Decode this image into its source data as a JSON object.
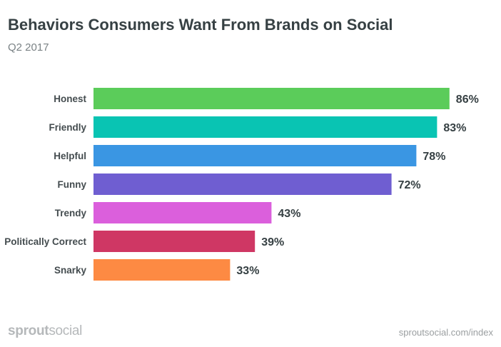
{
  "chart_data": {
    "type": "bar",
    "orientation": "horizontal",
    "title": "Behaviors Consumers Want From Brands on Social",
    "subtitle": "Q2 2017",
    "categories": [
      "Honest",
      "Friendly",
      "Helpful",
      "Funny",
      "Trendy",
      "Politically Correct",
      "Snarky"
    ],
    "values": [
      86,
      83,
      78,
      72,
      43,
      39,
      33
    ],
    "labels": [
      "86%",
      "83%",
      "78%",
      "72%",
      "43%",
      "39%",
      "33%"
    ],
    "colors": [
      "#5bcc5a",
      "#09c4b3",
      "#3a96e3",
      "#6f5ed1",
      "#db5fdc",
      "#cf3764",
      "#fd8a43"
    ],
    "xlim": [
      0,
      100
    ],
    "grid": false,
    "legend": "none"
  },
  "footer": {
    "logo_bold": "sprout",
    "logo_light": "social",
    "url": "sproutsocial.com/index"
  }
}
